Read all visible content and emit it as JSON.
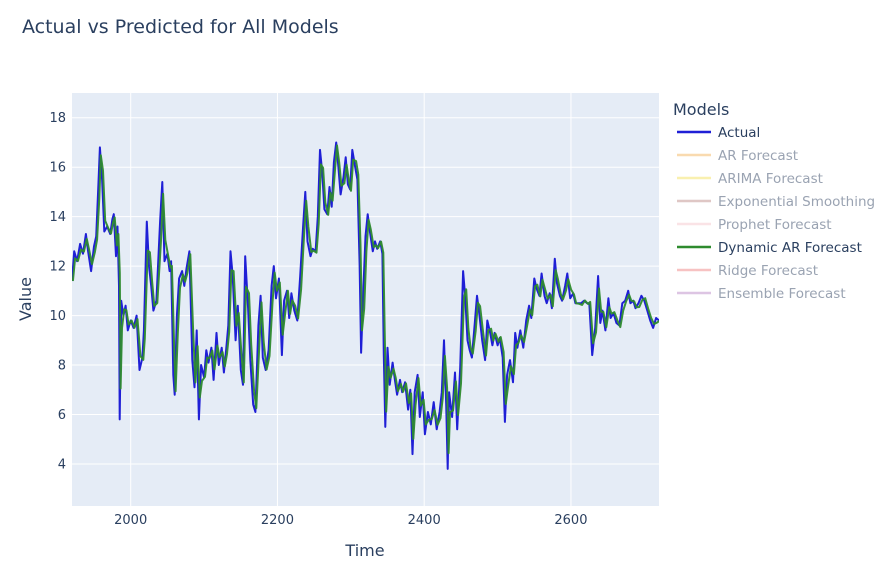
{
  "chart_data": {
    "type": "line",
    "title": "Actual vs Predicted for All Models",
    "xlabel": "Time",
    "ylabel": "Value",
    "xlim": [
      1920,
      2720
    ],
    "ylim": [
      2.3,
      19
    ],
    "xticks": [
      2000,
      2200,
      2400,
      2600
    ],
    "yticks": [
      4,
      6,
      8,
      10,
      12,
      14,
      16,
      18
    ],
    "grid": true,
    "legend_title": "Models",
    "legend_position": "right",
    "series": [
      {
        "name": "Actual",
        "color": "#1f1fd6",
        "visible": true,
        "points": [
          [
            1920,
            11.4
          ],
          [
            1923,
            12.6
          ],
          [
            1927,
            12.2
          ],
          [
            1931,
            12.9
          ],
          [
            1935,
            12.5
          ],
          [
            1939,
            13.3
          ],
          [
            1942,
            12.6
          ],
          [
            1946,
            11.8
          ],
          [
            1950,
            12.8
          ],
          [
            1953,
            13.2
          ],
          [
            1956,
            15.3
          ],
          [
            1958,
            16.8
          ],
          [
            1961,
            15.5
          ],
          [
            1964,
            13.4
          ],
          [
            1968,
            13.6
          ],
          [
            1972,
            13.3
          ],
          [
            1975,
            13.9
          ],
          [
            1977,
            14.1
          ],
          [
            1980,
            12.4
          ],
          [
            1982,
            13.6
          ],
          [
            1984,
            11.2
          ],
          [
            1985,
            5.8
          ],
          [
            1987,
            10.6
          ],
          [
            1990,
            10.0
          ],
          [
            1993,
            10.4
          ],
          [
            1996,
            9.4
          ],
          [
            2000,
            9.8
          ],
          [
            2004,
            9.5
          ],
          [
            2008,
            10.0
          ],
          [
            2012,
            7.8
          ],
          [
            2016,
            8.3
          ],
          [
            2018,
            9.4
          ],
          [
            2022,
            13.8
          ],
          [
            2025,
            12.0
          ],
          [
            2028,
            11.2
          ],
          [
            2031,
            10.2
          ],
          [
            2035,
            10.6
          ],
          [
            2040,
            13.8
          ],
          [
            2043,
            15.4
          ],
          [
            2046,
            12.2
          ],
          [
            2050,
            12.5
          ],
          [
            2053,
            11.8
          ],
          [
            2055,
            12.2
          ],
          [
            2058,
            7.6
          ],
          [
            2060,
            6.8
          ],
          [
            2063,
            10.0
          ],
          [
            2066,
            11.5
          ],
          [
            2070,
            11.8
          ],
          [
            2073,
            11.2
          ],
          [
            2076,
            11.9
          ],
          [
            2080,
            12.6
          ],
          [
            2084,
            8.2
          ],
          [
            2087,
            7.1
          ],
          [
            2090,
            9.4
          ],
          [
            2093,
            5.8
          ],
          [
            2096,
            8.0
          ],
          [
            2100,
            7.5
          ],
          [
            2103,
            8.6
          ],
          [
            2106,
            8.1
          ],
          [
            2110,
            8.7
          ],
          [
            2113,
            7.4
          ],
          [
            2117,
            9.3
          ],
          [
            2120,
            8.0
          ],
          [
            2124,
            8.7
          ],
          [
            2127,
            7.7
          ],
          [
            2130,
            8.6
          ],
          [
            2133,
            9.6
          ],
          [
            2136,
            12.6
          ],
          [
            2139,
            11.6
          ],
          [
            2143,
            9.0
          ],
          [
            2146,
            10.4
          ],
          [
            2150,
            7.8
          ],
          [
            2153,
            7.2
          ],
          [
            2156,
            12.4
          ],
          [
            2160,
            10.3
          ],
          [
            2163,
            8.2
          ],
          [
            2167,
            6.4
          ],
          [
            2170,
            6.1
          ],
          [
            2174,
            9.6
          ],
          [
            2177,
            10.8
          ],
          [
            2180,
            8.3
          ],
          [
            2184,
            7.8
          ],
          [
            2188,
            8.6
          ],
          [
            2192,
            11.2
          ],
          [
            2195,
            12.0
          ],
          [
            2198,
            10.7
          ],
          [
            2202,
            11.5
          ],
          [
            2206,
            8.4
          ],
          [
            2209,
            10.6
          ],
          [
            2213,
            11.0
          ],
          [
            2216,
            9.9
          ],
          [
            2219,
            10.9
          ],
          [
            2223,
            10.2
          ],
          [
            2227,
            9.8
          ],
          [
            2231,
            11.6
          ],
          [
            2235,
            13.6
          ],
          [
            2238,
            15.0
          ],
          [
            2241,
            13.0
          ],
          [
            2245,
            12.4
          ],
          [
            2248,
            12.7
          ],
          [
            2252,
            12.6
          ],
          [
            2255,
            14.0
          ],
          [
            2258,
            16.7
          ],
          [
            2261,
            15.8
          ],
          [
            2264,
            14.3
          ],
          [
            2268,
            14.1
          ],
          [
            2271,
            15.2
          ],
          [
            2274,
            14.4
          ],
          [
            2277,
            16.2
          ],
          [
            2280,
            17.0
          ],
          [
            2283,
            16.0
          ],
          [
            2286,
            14.9
          ],
          [
            2290,
            15.6
          ],
          [
            2293,
            16.4
          ],
          [
            2296,
            15.3
          ],
          [
            2299,
            15.1
          ],
          [
            2302,
            16.7
          ],
          [
            2306,
            16.0
          ],
          [
            2309,
            15.5
          ],
          [
            2312,
            12.1
          ],
          [
            2314,
            8.5
          ],
          [
            2317,
            11.0
          ],
          [
            2320,
            13.2
          ],
          [
            2323,
            14.1
          ],
          [
            2326,
            13.4
          ],
          [
            2330,
            12.6
          ],
          [
            2333,
            13.0
          ],
          [
            2336,
            12.7
          ],
          [
            2340,
            13.0
          ],
          [
            2343,
            12.5
          ],
          [
            2345,
            8.4
          ],
          [
            2347,
            5.5
          ],
          [
            2350,
            8.7
          ],
          [
            2353,
            7.2
          ],
          [
            2357,
            8.1
          ],
          [
            2360,
            7.4
          ],
          [
            2363,
            6.8
          ],
          [
            2367,
            7.4
          ],
          [
            2370,
            6.9
          ],
          [
            2374,
            7.3
          ],
          [
            2378,
            6.2
          ],
          [
            2381,
            7.0
          ],
          [
            2384,
            4.4
          ],
          [
            2387,
            6.9
          ],
          [
            2391,
            7.6
          ],
          [
            2394,
            5.9
          ],
          [
            2398,
            6.9
          ],
          [
            2401,
            5.2
          ],
          [
            2405,
            6.1
          ],
          [
            2409,
            5.6
          ],
          [
            2413,
            6.5
          ],
          [
            2417,
            5.4
          ],
          [
            2421,
            6.1
          ],
          [
            2424,
            6.9
          ],
          [
            2427,
            9.0
          ],
          [
            2430,
            6.4
          ],
          [
            2432,
            3.8
          ],
          [
            2434,
            6.9
          ],
          [
            2438,
            5.9
          ],
          [
            2442,
            7.7
          ],
          [
            2445,
            5.4
          ],
          [
            2449,
            7.9
          ],
          [
            2453,
            11.8
          ],
          [
            2456,
            10.7
          ],
          [
            2459,
            9.0
          ],
          [
            2462,
            8.6
          ],
          [
            2465,
            8.3
          ],
          [
            2469,
            9.7
          ],
          [
            2472,
            10.8
          ],
          [
            2475,
            10.1
          ],
          [
            2479,
            9.0
          ],
          [
            2483,
            8.2
          ],
          [
            2486,
            9.8
          ],
          [
            2490,
            9.3
          ],
          [
            2493,
            8.8
          ],
          [
            2496,
            9.3
          ],
          [
            2500,
            8.8
          ],
          [
            2503,
            9.1
          ],
          [
            2507,
            8.3
          ],
          [
            2510,
            5.7
          ],
          [
            2513,
            7.6
          ],
          [
            2517,
            8.2
          ],
          [
            2521,
            7.3
          ],
          [
            2524,
            9.3
          ],
          [
            2527,
            8.7
          ],
          [
            2531,
            9.4
          ],
          [
            2535,
            8.7
          ],
          [
            2539,
            9.8
          ],
          [
            2543,
            10.4
          ],
          [
            2546,
            9.9
          ],
          [
            2550,
            11.5
          ],
          [
            2553,
            11.1
          ],
          [
            2557,
            10.8
          ],
          [
            2560,
            11.7
          ],
          [
            2564,
            10.8
          ],
          [
            2567,
            10.5
          ],
          [
            2571,
            10.9
          ],
          [
            2574,
            10.3
          ],
          [
            2578,
            12.3
          ],
          [
            2581,
            11.3
          ],
          [
            2585,
            10.8
          ],
          [
            2588,
            10.6
          ],
          [
            2592,
            11.2
          ],
          [
            2595,
            11.7
          ],
          [
            2599,
            10.7
          ],
          [
            2603,
            10.9
          ],
          [
            2606,
            10.5
          ],
          [
            2610,
            10.5
          ],
          [
            2614,
            10.5
          ],
          [
            2618,
            10.6
          ],
          [
            2622,
            10.5
          ],
          [
            2625,
            10.5
          ],
          [
            2629,
            8.4
          ],
          [
            2633,
            9.5
          ],
          [
            2637,
            11.6
          ],
          [
            2640,
            9.7
          ],
          [
            2643,
            10.2
          ],
          [
            2647,
            9.4
          ],
          [
            2651,
            10.7
          ],
          [
            2654,
            9.9
          ],
          [
            2658,
            10.1
          ],
          [
            2662,
            9.7
          ],
          [
            2666,
            9.6
          ],
          [
            2670,
            10.5
          ],
          [
            2674,
            10.6
          ],
          [
            2678,
            11.0
          ],
          [
            2681,
            10.5
          ],
          [
            2685,
            10.6
          ],
          [
            2688,
            10.3
          ],
          [
            2692,
            10.5
          ],
          [
            2696,
            10.8
          ],
          [
            2700,
            10.6
          ],
          [
            2704,
            10.2
          ],
          [
            2708,
            9.8
          ],
          [
            2712,
            9.5
          ],
          [
            2716,
            9.9
          ],
          [
            2720,
            9.8
          ]
        ]
      },
      {
        "name": "AR Forecast",
        "color": "#f5c27a",
        "visible": false
      },
      {
        "name": "ARIMA Forecast",
        "color": "#f5e67a",
        "visible": false
      },
      {
        "name": "Exponential Smoothing",
        "color": "#c9a19e",
        "visible": false
      },
      {
        "name": "Prophet Forecast",
        "color": "#f7d0d6",
        "visible": false
      },
      {
        "name": "Dynamic AR Forecast",
        "color": "#2e8b2e",
        "visible": true,
        "lag": 1,
        "noise": 0.22
      },
      {
        "name": "Ridge Forecast",
        "color": "#f29a9a",
        "visible": false
      },
      {
        "name": "Ensemble Forecast",
        "color": "#c79fd0",
        "visible": false
      }
    ]
  }
}
